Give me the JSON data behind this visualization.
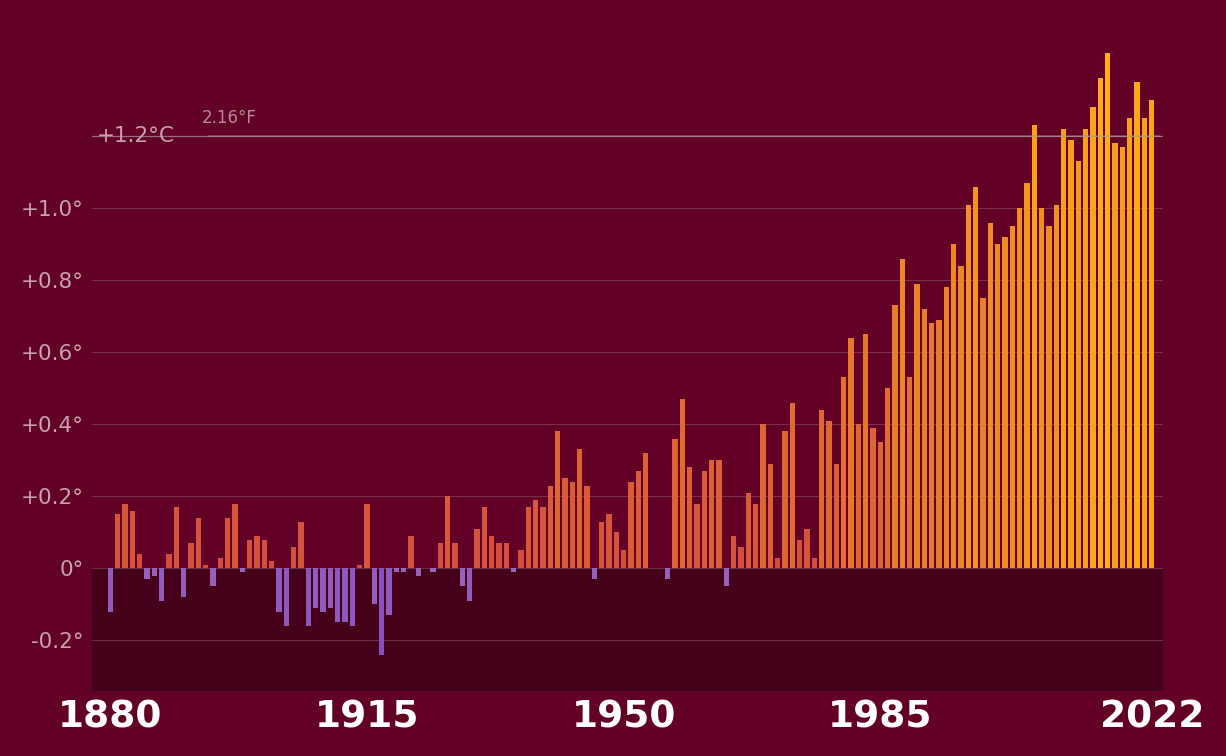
{
  "background_color": "#630025",
  "below_zero_bg": "#45001a",
  "grid_color": "#9a6878",
  "grid_alpha": 0.55,
  "text_color": "#c8a0b0",
  "xtick_color": "#ffffff",
  "bar_width": 0.72,
  "ylim": [
    -0.34,
    1.52
  ],
  "xlim": [
    1877.5,
    2023.5
  ],
  "ytick_positions": [
    1.0,
    0.8,
    0.6,
    0.4,
    0.2,
    0.0,
    -0.2
  ],
  "ytick_labels": [
    "+1.0°",
    "+0.8°",
    "+0.6°",
    "+0.4°",
    "+0.2°",
    "0°",
    "-0.2°"
  ],
  "xtick_positions": [
    1880,
    1915,
    1950,
    1985,
    2022
  ],
  "xtick_labels": [
    "1880",
    "1915",
    "1950",
    "1985",
    "2022"
  ],
  "label_1_2c": "+1.2°C",
  "label_fahrenheit": "2.16°F",
  "years": [
    1880,
    1881,
    1882,
    1883,
    1884,
    1885,
    1886,
    1887,
    1888,
    1889,
    1890,
    1891,
    1892,
    1893,
    1894,
    1895,
    1896,
    1897,
    1898,
    1899,
    1900,
    1901,
    1902,
    1903,
    1904,
    1905,
    1906,
    1907,
    1908,
    1909,
    1910,
    1911,
    1912,
    1913,
    1914,
    1915,
    1916,
    1917,
    1918,
    1919,
    1920,
    1921,
    1922,
    1923,
    1924,
    1925,
    1926,
    1927,
    1928,
    1929,
    1930,
    1931,
    1932,
    1933,
    1934,
    1935,
    1936,
    1937,
    1938,
    1939,
    1940,
    1941,
    1942,
    1943,
    1944,
    1945,
    1946,
    1947,
    1948,
    1949,
    1950,
    1951,
    1952,
    1953,
    1954,
    1955,
    1956,
    1957,
    1958,
    1959,
    1960,
    1961,
    1962,
    1963,
    1964,
    1965,
    1966,
    1967,
    1968,
    1969,
    1970,
    1971,
    1972,
    1973,
    1974,
    1975,
    1976,
    1977,
    1978,
    1979,
    1980,
    1981,
    1982,
    1983,
    1984,
    1985,
    1986,
    1987,
    1988,
    1989,
    1990,
    1991,
    1992,
    1993,
    1994,
    1995,
    1996,
    1997,
    1998,
    1999,
    2000,
    2001,
    2002,
    2003,
    2004,
    2005,
    2006,
    2007,
    2008,
    2009,
    2010,
    2011,
    2012,
    2013,
    2014,
    2015,
    2016,
    2017,
    2018,
    2019,
    2020,
    2021,
    2022
  ],
  "anomalies": [
    -0.12,
    0.15,
    0.18,
    0.16,
    0.04,
    -0.03,
    -0.02,
    -0.09,
    0.04,
    0.17,
    -0.08,
    0.07,
    0.14,
    0.01,
    -0.05,
    0.03,
    0.14,
    0.18,
    -0.01,
    0.08,
    0.09,
    0.08,
    0.02,
    -0.12,
    -0.16,
    0.06,
    0.13,
    -0.16,
    -0.11,
    -0.12,
    -0.11,
    -0.15,
    -0.15,
    -0.16,
    0.01,
    0.18,
    -0.1,
    -0.24,
    -0.13,
    -0.01,
    -0.01,
    0.09,
    -0.02,
    0.0,
    -0.01,
    0.07,
    0.2,
    0.07,
    -0.05,
    -0.09,
    0.11,
    0.17,
    0.09,
    0.07,
    0.07,
    -0.01,
    0.05,
    0.17,
    0.19,
    0.17,
    0.23,
    0.38,
    0.25,
    0.24,
    0.33,
    0.23,
    -0.03,
    0.13,
    0.15,
    0.1,
    0.05,
    0.24,
    0.27,
    0.32,
    0.0,
    0.0,
    -0.03,
    0.36,
    0.47,
    0.28,
    0.18,
    0.27,
    0.3,
    0.3,
    -0.05,
    0.09,
    0.06,
    0.21,
    0.18,
    0.4,
    0.29,
    0.03,
    0.38,
    0.46,
    0.08,
    0.11,
    0.03,
    0.44,
    0.41,
    0.29,
    0.53,
    0.64,
    0.4,
    0.65,
    0.39,
    0.35,
    0.5,
    0.73,
    0.86,
    0.53,
    0.79,
    0.72,
    0.68,
    0.69,
    0.78,
    0.9,
    0.84,
    1.01,
    1.06,
    0.75,
    0.96,
    0.9,
    0.92,
    0.95,
    1.0,
    1.07,
    1.23,
    1.0,
    0.95,
    1.01,
    1.22,
    1.19,
    1.13,
    1.22,
    1.28,
    1.36,
    1.43,
    1.18,
    1.17,
    1.25,
    1.35,
    1.25,
    1.3
  ]
}
